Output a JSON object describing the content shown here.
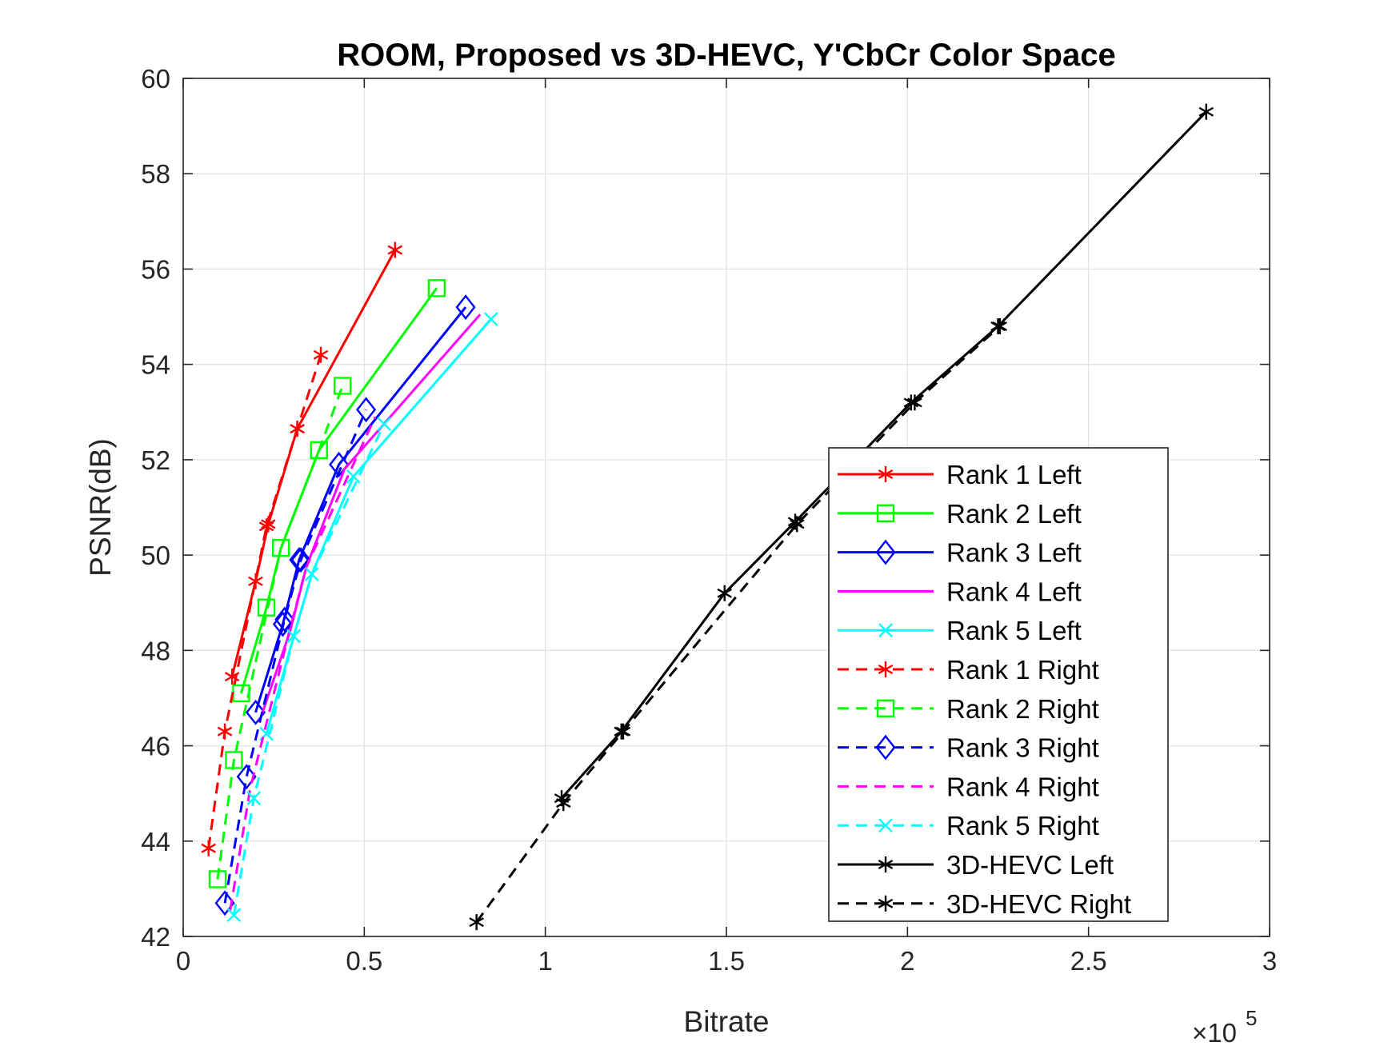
{
  "chart_data": {
    "type": "line",
    "title": "ROOM, Proposed vs 3D-HEVC, Y'CbCr Color Space",
    "xlabel": "Bitrate",
    "ylabel": "PSNR(dB)",
    "x_multiplier": "×10",
    "x_exponent": "5",
    "xlim": [
      0,
      300000
    ],
    "ylim": [
      42,
      60
    ],
    "xticks": [
      0,
      50000,
      100000,
      150000,
      200000,
      250000,
      300000
    ],
    "xtick_labels": [
      "0",
      "0.5",
      "1",
      "1.5",
      "2",
      "2.5",
      "3"
    ],
    "yticks": [
      42,
      44,
      46,
      48,
      50,
      52,
      54,
      56,
      58,
      60
    ],
    "ytick_labels": [
      "42",
      "44",
      "46",
      "48",
      "50",
      "52",
      "54",
      "56",
      "58",
      "60"
    ],
    "grid": true,
    "legend_position": "lower-right",
    "series": [
      {
        "name": "Rank 1 Left",
        "color": "#ff0000",
        "dash": "solid",
        "marker": "asterisk",
        "x": [
          13500,
          20000,
          23500,
          31500,
          58500
        ],
        "y": [
          47.45,
          49.45,
          50.65,
          52.65,
          56.4
        ]
      },
      {
        "name": "Rank 2 Left",
        "color": "#00ff00",
        "dash": "solid",
        "marker": "square",
        "x": [
          16000,
          23000,
          27000,
          37500,
          70000
        ],
        "y": [
          47.1,
          48.9,
          50.15,
          52.2,
          55.6
        ]
      },
      {
        "name": "Rank 3 Left",
        "color": "#0000ff",
        "dash": "solid",
        "marker": "diamond",
        "x": [
          20000,
          27500,
          32000,
          43000,
          78000
        ],
        "y": [
          46.7,
          48.55,
          49.9,
          51.9,
          55.2
        ]
      },
      {
        "name": "Rank 4 Left",
        "color": "#ff00ff",
        "dash": "solid",
        "marker": "none",
        "x": [
          21000,
          29500,
          34000,
          44500,
          82000
        ],
        "y": [
          46.5,
          48.4,
          49.75,
          51.8,
          55.05
        ]
      },
      {
        "name": "Rank 5 Left",
        "color": "#00ffff",
        "dash": "solid",
        "marker": "x",
        "x": [
          23000,
          30500,
          35500,
          47000,
          85000
        ],
        "y": [
          46.25,
          48.3,
          49.6,
          51.65,
          54.95
        ]
      },
      {
        "name": "Rank 1 Right",
        "color": "#ff0000",
        "dash": "dashed",
        "marker": "asterisk",
        "x": [
          7000,
          11500,
          23000,
          31500,
          38000
        ],
        "y": [
          43.85,
          46.3,
          50.6,
          52.65,
          54.2
        ]
      },
      {
        "name": "Rank 2 Right",
        "color": "#00ff00",
        "dash": "dashed",
        "marker": "square",
        "x": [
          9500,
          14000,
          27000,
          37500,
          44000
        ],
        "y": [
          43.2,
          45.7,
          50.15,
          52.2,
          53.55
        ]
      },
      {
        "name": "Rank 3 Right",
        "color": "#0000ff",
        "dash": "dashed",
        "marker": "diamond",
        "x": [
          11500,
          17500,
          28000,
          32500,
          50500
        ],
        "y": [
          42.7,
          45.35,
          48.65,
          49.9,
          53.05
        ]
      },
      {
        "name": "Rank 4 Right",
        "color": "#ff00ff",
        "dash": "dashed",
        "marker": "none",
        "x": [
          13000,
          18500,
          29500,
          34000,
          53000
        ],
        "y": [
          42.55,
          45.1,
          48.45,
          49.75,
          52.9
        ]
      },
      {
        "name": "Rank 5 Right",
        "color": "#00ffff",
        "dash": "dashed",
        "marker": "x",
        "x": [
          14000,
          19500,
          30500,
          35500,
          55500
        ],
        "y": [
          42.45,
          44.9,
          48.3,
          49.6,
          52.75
        ]
      },
      {
        "name": "3D-HEVC Left",
        "color": "#000000",
        "dash": "solid",
        "marker": "asterisk",
        "x": [
          104500,
          121000,
          149500,
          169000,
          201000,
          225000,
          282500
        ],
        "y": [
          44.9,
          46.3,
          49.2,
          50.7,
          53.2,
          54.8,
          59.3
        ]
      },
      {
        "name": "3D-HEVC Right",
        "color": "#000000",
        "dash": "dashed",
        "marker": "asterisk",
        "x": [
          81000,
          105000,
          121500,
          169500,
          202000,
          225500
        ],
        "y": [
          42.3,
          44.8,
          46.3,
          50.65,
          53.2,
          54.8
        ]
      }
    ]
  }
}
